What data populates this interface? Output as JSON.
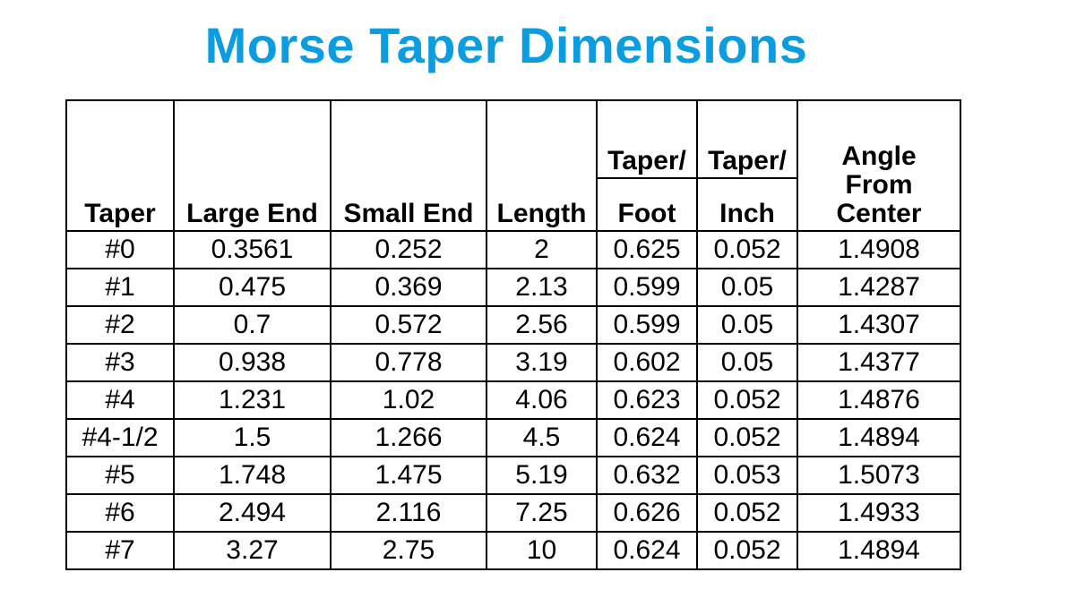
{
  "title": "Morse Taper Dimensions",
  "headers": {
    "taper": "Taper",
    "large_end": "Large End",
    "small_end": "Small End",
    "length": "Length",
    "taper_foot_top": "Taper/",
    "taper_foot_bottom": "Foot",
    "taper_inch_top": "Taper/",
    "taper_inch_bottom": "Inch",
    "angle_l1": "Angle",
    "angle_l2": "From",
    "angle_l3": "Center"
  },
  "rows": [
    [
      "#0",
      "0.3561",
      "0.252",
      "2",
      "0.625",
      "0.052",
      "1.4908"
    ],
    [
      "#1",
      "0.475",
      "0.369",
      "2.13",
      "0.599",
      "0.05",
      "1.4287"
    ],
    [
      "#2",
      "0.7",
      "0.572",
      "2.56",
      "0.599",
      "0.05",
      "1.4307"
    ],
    [
      "#3",
      "0.938",
      "0.778",
      "3.19",
      "0.602",
      "0.05",
      "1.4377"
    ],
    [
      "#4",
      "1.231",
      "1.02",
      "4.06",
      "0.623",
      "0.052",
      "1.4876"
    ],
    [
      "#4-1/2",
      "1.5",
      "1.266",
      "4.5",
      "0.624",
      "0.052",
      "1.4894"
    ],
    [
      "#5",
      "1.748",
      "1.475",
      "5.19",
      "0.632",
      "0.053",
      "1.5073"
    ],
    [
      "#6",
      "2.494",
      "2.116",
      "7.25",
      "0.626",
      "0.052",
      "1.4933"
    ],
    [
      "#7",
      "3.27",
      "2.75",
      "10",
      "0.624",
      "0.052",
      "1.4894"
    ]
  ],
  "colors": {
    "title": "#0b9de0",
    "text": "#000000",
    "border": "#000000"
  }
}
